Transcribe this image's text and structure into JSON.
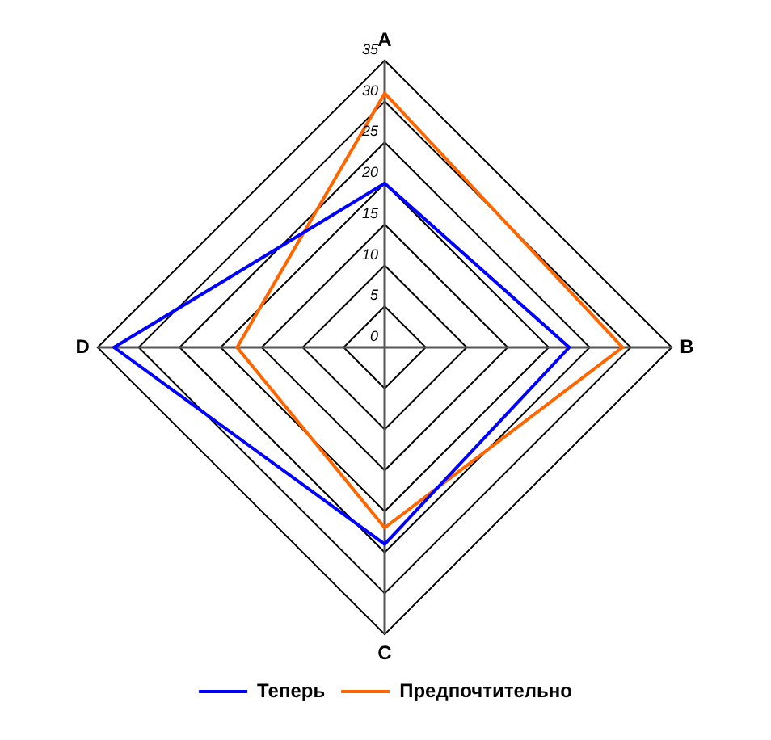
{
  "chart_data": {
    "type": "radar",
    "categories": [
      "A",
      "B",
      "C",
      "D"
    ],
    "series": [
      {
        "name": "Теперь",
        "color": "#0000ff",
        "values": [
          20,
          22.5,
          24,
          33
        ]
      },
      {
        "name": "Предпочтительно",
        "color": "#ff6600",
        "values": [
          31,
          29,
          22,
          18
        ]
      }
    ],
    "ylim": [
      0,
      35
    ],
    "yticks": [
      0,
      5,
      10,
      15,
      20,
      25,
      30,
      35
    ],
    "grid": true,
    "legend": "bottom",
    "marker": "none",
    "line_style": "solid"
  }
}
